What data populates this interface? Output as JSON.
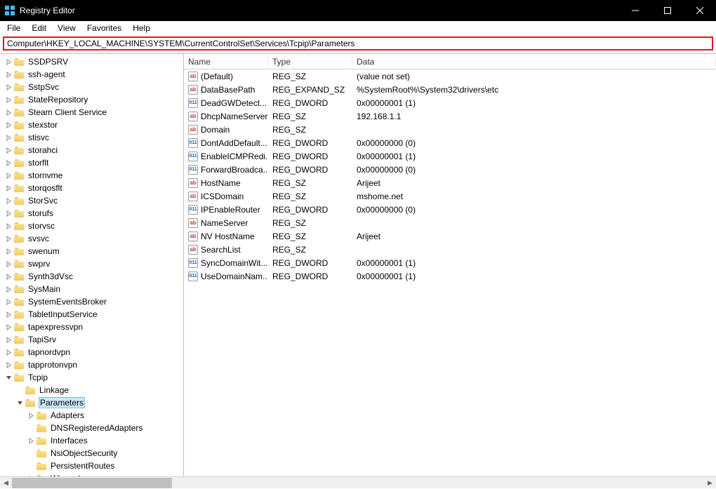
{
  "window": {
    "title": "Registry Editor"
  },
  "menu": {
    "file": "File",
    "edit": "Edit",
    "view": "View",
    "favorites": "Favorites",
    "help": "Help"
  },
  "address": "Computer\\HKEY_LOCAL_MACHINE\\SYSTEM\\CurrentControlSet\\Services\\Tcpip\\Parameters",
  "tree": [
    {
      "label": "SSDPSRV",
      "depth": 0,
      "exp": "right"
    },
    {
      "label": "ssh-agent",
      "depth": 0,
      "exp": "right"
    },
    {
      "label": "SstpSvc",
      "depth": 0,
      "exp": "right"
    },
    {
      "label": "StateRepository",
      "depth": 0,
      "exp": "right"
    },
    {
      "label": "Steam Client Service",
      "depth": 0,
      "exp": "right"
    },
    {
      "label": "stexstor",
      "depth": 0,
      "exp": "right"
    },
    {
      "label": "stisvc",
      "depth": 0,
      "exp": "right"
    },
    {
      "label": "storahci",
      "depth": 0,
      "exp": "right"
    },
    {
      "label": "storflt",
      "depth": 0,
      "exp": "right"
    },
    {
      "label": "stornvme",
      "depth": 0,
      "exp": "right"
    },
    {
      "label": "storqosflt",
      "depth": 0,
      "exp": "right"
    },
    {
      "label": "StorSvc",
      "depth": 0,
      "exp": "right"
    },
    {
      "label": "storufs",
      "depth": 0,
      "exp": "right"
    },
    {
      "label": "storvsc",
      "depth": 0,
      "exp": "right"
    },
    {
      "label": "svsvc",
      "depth": 0,
      "exp": "right"
    },
    {
      "label": "swenum",
      "depth": 0,
      "exp": "right"
    },
    {
      "label": "swprv",
      "depth": 0,
      "exp": "right"
    },
    {
      "label": "Synth3dVsc",
      "depth": 0,
      "exp": "right"
    },
    {
      "label": "SysMain",
      "depth": 0,
      "exp": "right"
    },
    {
      "label": "SystemEventsBroker",
      "depth": 0,
      "exp": "right"
    },
    {
      "label": "TabletInputService",
      "depth": 0,
      "exp": "right"
    },
    {
      "label": "tapexpressvpn",
      "depth": 0,
      "exp": "right"
    },
    {
      "label": "TapiSrv",
      "depth": 0,
      "exp": "right"
    },
    {
      "label": "tapnordvpn",
      "depth": 0,
      "exp": "right"
    },
    {
      "label": "tapprotonvpn",
      "depth": 0,
      "exp": "right"
    },
    {
      "label": "Tcpip",
      "depth": 0,
      "exp": "down"
    },
    {
      "label": "Linkage",
      "depth": 1,
      "exp": "blank"
    },
    {
      "label": "Parameters",
      "depth": 1,
      "exp": "down",
      "selected": true
    },
    {
      "label": "Adapters",
      "depth": 2,
      "exp": "right"
    },
    {
      "label": "DNSRegisteredAdapters",
      "depth": 2,
      "exp": "blank"
    },
    {
      "label": "Interfaces",
      "depth": 2,
      "exp": "right"
    },
    {
      "label": "NsiObjectSecurity",
      "depth": 2,
      "exp": "blank"
    },
    {
      "label": "PersistentRoutes",
      "depth": 2,
      "exp": "blank"
    },
    {
      "label": "Winsock",
      "depth": 2,
      "exp": "right"
    }
  ],
  "columns": {
    "name": "Name",
    "type": "Type",
    "data": "Data"
  },
  "values": [
    {
      "name": "(Default)",
      "type": "REG_SZ",
      "data": "(value not set)",
      "icon": "sz"
    },
    {
      "name": "DataBasePath",
      "type": "REG_EXPAND_SZ",
      "data": "%SystemRoot%\\System32\\drivers\\etc",
      "icon": "sz"
    },
    {
      "name": "DeadGWDetect...",
      "type": "REG_DWORD",
      "data": "0x00000001 (1)",
      "icon": "bin"
    },
    {
      "name": "DhcpNameServer",
      "type": "REG_SZ",
      "data": "192.168.1.1",
      "icon": "sz"
    },
    {
      "name": "Domain",
      "type": "REG_SZ",
      "data": "",
      "icon": "sz"
    },
    {
      "name": "DontAddDefault...",
      "type": "REG_DWORD",
      "data": "0x00000000 (0)",
      "icon": "bin"
    },
    {
      "name": "EnableICMPRedi...",
      "type": "REG_DWORD",
      "data": "0x00000001 (1)",
      "icon": "bin"
    },
    {
      "name": "ForwardBroadca...",
      "type": "REG_DWORD",
      "data": "0x00000000 (0)",
      "icon": "bin"
    },
    {
      "name": "HostName",
      "type": "REG_SZ",
      "data": "Arijeet",
      "icon": "sz"
    },
    {
      "name": "ICSDomain",
      "type": "REG_SZ",
      "data": "mshome.net",
      "icon": "sz"
    },
    {
      "name": "IPEnableRouter",
      "type": "REG_DWORD",
      "data": "0x00000000 (0)",
      "icon": "bin"
    },
    {
      "name": "NameServer",
      "type": "REG_SZ",
      "data": "",
      "icon": "sz"
    },
    {
      "name": "NV HostName",
      "type": "REG_SZ",
      "data": "Arijeet",
      "icon": "sz"
    },
    {
      "name": "SearchList",
      "type": "REG_SZ",
      "data": "",
      "icon": "sz"
    },
    {
      "name": "SyncDomainWit...",
      "type": "REG_DWORD",
      "data": "0x00000001 (1)",
      "icon": "bin"
    },
    {
      "name": "UseDomainNam...",
      "type": "REG_DWORD",
      "data": "0x00000001 (1)",
      "icon": "bin"
    }
  ],
  "colors": {
    "titlebar_bg": "#000000",
    "titlebar_fg": "#ffffff",
    "highlight_border": "#e81123",
    "selection_bg": "#cde8ff",
    "selection_border": "#7ab7e8"
  }
}
